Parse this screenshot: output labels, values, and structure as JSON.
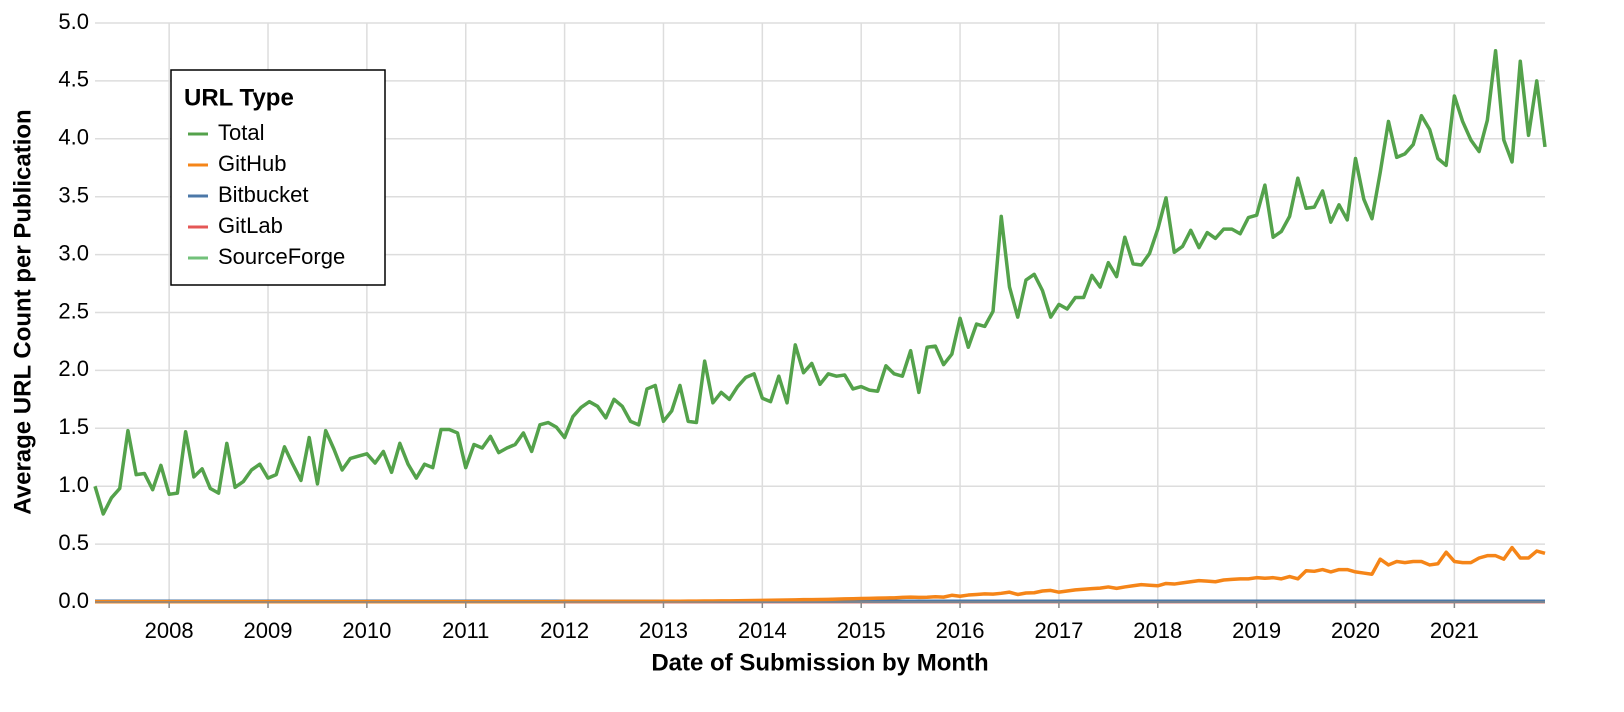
{
  "chart_data": {
    "type": "line",
    "x_label": "Date of Submission by Month",
    "y_label": "Average URL Count per Publication",
    "legend_title": "URL Type",
    "legend_position": "upper-left",
    "grid": true,
    "categories": [
      null,
      null,
      null,
      null,
      null,
      null,
      null,
      null,
      null,
      "2008",
      null,
      null,
      null,
      null,
      null,
      null,
      null,
      null,
      null,
      null,
      null,
      "2009",
      null,
      null,
      null,
      null,
      null,
      null,
      null,
      null,
      null,
      null,
      null,
      "2010",
      null,
      null,
      null,
      null,
      null,
      null,
      null,
      null,
      null,
      null,
      null,
      "2011",
      null,
      null,
      null,
      null,
      null,
      null,
      null,
      null,
      null,
      null,
      null,
      "2012",
      null,
      null,
      null,
      null,
      null,
      null,
      null,
      null,
      null,
      null,
      null,
      "2013",
      null,
      null,
      null,
      null,
      null,
      null,
      null,
      null,
      null,
      null,
      null,
      "2014",
      null,
      null,
      null,
      null,
      null,
      null,
      null,
      null,
      null,
      null,
      null,
      "2015",
      null,
      null,
      null,
      null,
      null,
      null,
      null,
      null,
      null,
      null,
      null,
      "2016",
      null,
      null,
      null,
      null,
      null,
      null,
      null,
      null,
      null,
      null,
      null,
      "2017",
      null,
      null,
      null,
      null,
      null,
      null,
      null,
      null,
      null,
      null,
      null,
      "2018",
      null,
      null,
      null,
      null,
      null,
      null,
      null,
      null,
      null,
      null,
      null,
      "2019",
      null,
      null,
      null,
      null,
      null,
      null,
      null,
      null,
      null,
      null,
      null,
      "2020",
      null,
      null,
      null,
      null,
      null,
      null,
      null,
      null,
      null,
      null,
      null,
      "2021",
      null,
      null,
      null,
      null,
      null,
      null,
      null,
      null,
      null,
      null,
      null
    ],
    "ylim": [
      0,
      5
    ],
    "yticks": [
      {
        "value": 0,
        "label": "0.0"
      },
      0.5,
      {
        "value": 1,
        "label": "1.0"
      },
      1.5,
      {
        "value": 2,
        "label": "2.0"
      },
      2.5,
      {
        "value": 3,
        "label": "3.0"
      },
      3.5,
      {
        "value": 4,
        "label": "4.0"
      },
      4.5,
      {
        "value": 5,
        "label": "5.0"
      }
    ],
    "series": [
      {
        "name": "Total",
        "color": "#54a24b",
        "values": [
          1.0,
          0.76,
          0.9,
          0.98,
          1.48,
          1.1,
          1.11,
          0.97,
          1.18,
          0.93,
          0.94,
          1.47,
          1.08,
          1.15,
          0.98,
          0.94,
          1.37,
          0.99,
          1.04,
          1.14,
          1.19,
          1.07,
          1.1,
          1.34,
          1.19,
          1.05,
          1.42,
          1.02,
          1.48,
          1.32,
          1.14,
          1.24,
          1.26,
          1.28,
          1.2,
          1.3,
          1.12,
          1.37,
          1.19,
          1.07,
          1.19,
          1.16,
          1.49,
          1.49,
          1.46,
          1.16,
          1.36,
          1.33,
          1.43,
          1.29,
          1.33,
          1.36,
          1.46,
          1.3,
          1.53,
          1.55,
          1.51,
          1.42,
          1.6,
          1.68,
          1.73,
          1.69,
          1.59,
          1.75,
          1.69,
          1.56,
          1.53,
          1.84,
          1.87,
          1.56,
          1.65,
          1.87,
          1.56,
          1.55,
          2.08,
          1.72,
          1.81,
          1.75,
          1.86,
          1.94,
          1.97,
          1.76,
          1.73,
          1.95,
          1.72,
          2.22,
          1.98,
          2.06,
          1.88,
          1.97,
          1.95,
          1.96,
          1.84,
          1.86,
          1.83,
          1.82,
          2.04,
          1.97,
          1.95,
          2.17,
          1.81,
          2.2,
          2.21,
          2.05,
          2.14,
          2.45,
          2.2,
          2.4,
          2.38,
          2.51,
          3.33,
          2.72,
          2.46,
          2.78,
          2.83,
          2.69,
          2.46,
          2.57,
          2.53,
          2.63,
          2.63,
          2.82,
          2.72,
          2.93,
          2.81,
          3.15,
          2.92,
          2.91,
          3.01,
          3.22,
          3.49,
          3.02,
          3.07,
          3.21,
          3.06,
          3.19,
          3.14,
          3.22,
          3.22,
          3.18,
          3.32,
          3.34,
          3.6,
          3.15,
          3.2,
          3.33,
          3.66,
          3.4,
          3.41,
          3.55,
          3.28,
          3.43,
          3.3,
          3.83,
          3.48,
          3.31,
          3.71,
          4.15,
          3.84,
          3.87,
          3.95,
          4.2,
          4.08,
          3.83,
          3.77,
          4.37,
          4.15,
          3.99,
          3.89,
          4.16,
          4.76,
          3.99,
          3.8,
          4.67,
          4.03,
          4.5,
          3.93
        ]
      },
      {
        "name": "GitHub",
        "color": "#f58518",
        "values": [
          0.002,
          0.002,
          0.002,
          0.002,
          0.002,
          0.002,
          0.002,
          0.002,
          0.002,
          0.002,
          0.002,
          0.002,
          0.002,
          0.002,
          0.002,
          0.002,
          0.002,
          0.002,
          0.002,
          0.002,
          0.002,
          0.002,
          0.002,
          0.002,
          0.002,
          0.002,
          0.002,
          0.002,
          0.002,
          0.002,
          0.002,
          0.002,
          0.002,
          0.002,
          0.002,
          0.002,
          0.002,
          0.002,
          0.002,
          0.002,
          0.002,
          0.002,
          0.002,
          0.002,
          0.002,
          0.002,
          0.002,
          0.002,
          0.002,
          0.002,
          0.002,
          0.002,
          0.002,
          0.002,
          0.002,
          0.002,
          0.002,
          0.005,
          0.005,
          0.005,
          0.005,
          0.005,
          0.005,
          0.005,
          0.005,
          0.005,
          0.005,
          0.005,
          0.005,
          0.006,
          0.007,
          0.007,
          0.008,
          0.008,
          0.009,
          0.009,
          0.01,
          0.01,
          0.011,
          0.012,
          0.013,
          0.014,
          0.015,
          0.016,
          0.017,
          0.018,
          0.02,
          0.021,
          0.022,
          0.023,
          0.025,
          0.027,
          0.028,
          0.03,
          0.031,
          0.033,
          0.035,
          0.036,
          0.04,
          0.042,
          0.04,
          0.041,
          0.045,
          0.042,
          0.058,
          0.05,
          0.06,
          0.065,
          0.07,
          0.068,
          0.075,
          0.085,
          0.065,
          0.078,
          0.08,
          0.095,
          0.1,
          0.085,
          0.095,
          0.105,
          0.11,
          0.115,
          0.12,
          0.13,
          0.118,
          0.13,
          0.14,
          0.15,
          0.145,
          0.14,
          0.16,
          0.155,
          0.165,
          0.175,
          0.185,
          0.18,
          0.175,
          0.19,
          0.195,
          0.2,
          0.2,
          0.21,
          0.205,
          0.21,
          0.2,
          0.22,
          0.2,
          0.27,
          0.265,
          0.28,
          0.26,
          0.28,
          0.28,
          0.26,
          0.25,
          0.24,
          0.37,
          0.32,
          0.35,
          0.34,
          0.35,
          0.35,
          0.32,
          0.33,
          0.43,
          0.35,
          0.34,
          0.34,
          0.38,
          0.4,
          0.4,
          0.37,
          0.47,
          0.38,
          0.38,
          0.44,
          0.42
        ]
      },
      {
        "name": "Bitbucket",
        "color": "#4c78a8",
        "values": [
          0.006,
          0.006,
          0.006,
          0.006,
          0.006,
          0.006,
          0.006,
          0.006,
          0.006,
          0.006,
          0.006,
          0.006,
          0.006,
          0.006,
          0.006,
          0.006,
          0.006,
          0.006,
          0.006,
          0.006,
          0.006,
          0.006,
          0.006,
          0.006,
          0.006,
          0.006,
          0.006,
          0.006,
          0.006,
          0.006,
          0.006,
          0.006,
          0.006,
          0.006,
          0.006,
          0.006,
          0.006,
          0.006,
          0.006,
          0.006,
          0.006,
          0.006,
          0.006,
          0.006,
          0.006,
          0.006,
          0.006,
          0.006,
          0.006,
          0.006,
          0.006,
          0.006,
          0.006,
          0.006,
          0.006,
          0.006,
          0.006,
          0.006,
          0.006,
          0.006,
          0.006,
          0.006,
          0.006,
          0.006,
          0.006,
          0.006,
          0.006,
          0.006,
          0.006,
          0.006,
          0.006,
          0.006,
          0.006,
          0.006,
          0.006,
          0.006,
          0.006,
          0.006,
          0.006,
          0.006,
          0.006,
          0.006,
          0.006,
          0.006,
          0.006,
          0.006,
          0.006,
          0.006,
          0.006,
          0.006,
          0.006,
          0.006,
          0.006,
          0.006,
          0.006,
          0.006,
          0.006,
          0.006,
          0.006,
          0.006,
          0.006,
          0.006,
          0.006,
          0.006,
          0.006,
          0.006,
          0.006,
          0.006,
          0.006,
          0.006,
          0.006,
          0.006,
          0.006,
          0.006,
          0.006,
          0.006,
          0.006,
          0.006,
          0.006,
          0.006,
          0.006,
          0.006,
          0.006,
          0.006,
          0.006,
          0.006,
          0.006,
          0.006,
          0.006,
          0.006,
          0.006,
          0.006,
          0.006,
          0.006,
          0.006,
          0.006,
          0.006,
          0.006,
          0.006,
          0.006,
          0.006,
          0.006,
          0.006,
          0.006,
          0.006,
          0.006,
          0.006,
          0.006,
          0.006,
          0.006,
          0.006,
          0.006,
          0.006,
          0.006,
          0.006,
          0.006,
          0.006,
          0.006,
          0.006,
          0.006,
          0.006,
          0.006,
          0.006,
          0.006,
          0.006,
          0.006,
          0.006,
          0.006,
          0.006,
          0.006,
          0.006,
          0.006,
          0.006,
          0.006,
          0.006,
          0.006,
          0.006
        ]
      },
      {
        "name": "GitLab",
        "color": "#e45756",
        "values": [
          0.003,
          0.003,
          0.003,
          0.003,
          0.003,
          0.003,
          0.003,
          0.003,
          0.003,
          0.003,
          0.003,
          0.003,
          0.003,
          0.003,
          0.003,
          0.003,
          0.003,
          0.003,
          0.003,
          0.003,
          0.003,
          0.003,
          0.003,
          0.003,
          0.003,
          0.003,
          0.003,
          0.003,
          0.003,
          0.003,
          0.003,
          0.003,
          0.003,
          0.003,
          0.003,
          0.003,
          0.003,
          0.003,
          0.003,
          0.003,
          0.003,
          0.003,
          0.003,
          0.003,
          0.003,
          0.003,
          0.003,
          0.003,
          0.003,
          0.003,
          0.003,
          0.003,
          0.003,
          0.003,
          0.003,
          0.003,
          0.003,
          0.003,
          0.003,
          0.003,
          0.003,
          0.003,
          0.003,
          0.003,
          0.003,
          0.003,
          0.003,
          0.003,
          0.003,
          0.003,
          0.003,
          0.003,
          0.003,
          0.003,
          0.003,
          0.003,
          0.003,
          0.003,
          0.003,
          0.003,
          0.003,
          0.003,
          0.003,
          0.003,
          0.003,
          0.003,
          0.003,
          0.003,
          0.003,
          0.003,
          0.003,
          0.003,
          0.003,
          0.003,
          0.003,
          0.003,
          0.003,
          0.003,
          0.003,
          0.003,
          0.003,
          0.003,
          0.003,
          0.003,
          0.003,
          0.003,
          0.003,
          0.003,
          0.003,
          0.003,
          0.003,
          0.003,
          0.003,
          0.003,
          0.003,
          0.003,
          0.003,
          0.003,
          0.003,
          0.003,
          0.003,
          0.003,
          0.003,
          0.003,
          0.003,
          0.003,
          0.003,
          0.003,
          0.003,
          0.003,
          0.003,
          0.003,
          0.003,
          0.003,
          0.003,
          0.003,
          0.003,
          0.003,
          0.003,
          0.003,
          0.003,
          0.003,
          0.003,
          0.003,
          0.003,
          0.003,
          0.003,
          0.003,
          0.003,
          0.003,
          0.003,
          0.003,
          0.003,
          0.003,
          0.003,
          0.003,
          0.003,
          0.003,
          0.003,
          0.003,
          0.003,
          0.003,
          0.003,
          0.003,
          0.003,
          0.003,
          0.003,
          0.003,
          0.003,
          0.003,
          0.003,
          0.003,
          0.003,
          0.003,
          0.003,
          0.003,
          0.003
        ]
      },
      {
        "name": "SourceForge",
        "color": "#72c17a",
        "values": [
          0.004,
          0.004,
          0.004,
          0.004,
          0.004,
          0.004,
          0.004,
          0.004,
          0.004,
          0.004,
          0.004,
          0.004,
          0.004,
          0.004,
          0.004,
          0.004,
          0.004,
          0.004,
          0.004,
          0.004,
          0.004,
          0.004,
          0.004,
          0.004,
          0.004,
          0.004,
          0.004,
          0.004,
          0.004,
          0.004,
          0.004,
          0.004,
          0.004,
          0.004,
          0.004,
          0.004,
          0.004,
          0.004,
          0.004,
          0.004,
          0.004,
          0.004,
          0.004,
          0.004,
          0.004,
          0.004,
          0.004,
          0.004,
          0.004,
          0.004,
          0.004,
          0.004,
          0.004,
          0.004,
          0.004,
          0.004,
          0.004,
          0.004,
          0.004,
          0.004,
          0.004,
          0.004,
          0.004,
          0.004,
          0.004,
          0.004,
          0.004,
          0.004,
          0.004,
          0.004,
          0.004,
          0.004,
          0.004,
          0.004,
          0.004,
          0.004,
          0.004,
          0.004,
          0.004,
          0.004,
          0.004,
          0.004,
          0.004,
          0.004,
          0.004,
          0.004,
          0.004,
          0.004,
          0.004,
          0.004,
          0.004,
          0.004,
          0.004,
          0.004,
          0.004,
          0.004,
          0.004,
          0.004,
          0.004,
          0.004,
          0.004,
          0.004,
          0.004,
          0.004,
          0.004,
          0.004,
          0.004,
          0.004,
          0.004,
          0.004,
          0.004,
          0.004,
          0.004,
          0.004,
          0.004,
          0.004,
          0.004,
          0.004,
          0.004,
          0.004,
          0.004,
          0.004,
          0.004,
          0.004,
          0.004,
          0.004,
          0.004,
          0.004,
          0.004,
          0.004,
          0.004,
          0.004,
          0.004,
          0.004,
          0.004,
          0.004,
          0.004,
          0.004,
          0.004,
          0.004,
          0.004,
          0.004,
          0.004,
          0.004,
          0.004,
          0.004,
          0.004,
          0.004,
          0.004,
          0.004,
          0.004,
          0.004,
          0.004,
          0.004,
          0.004,
          0.004,
          0.004,
          0.004,
          0.004,
          0.004,
          0.004,
          0.004,
          0.004,
          0.004,
          0.004,
          0.004,
          0.004,
          0.004,
          0.004,
          0.004,
          0.004,
          0.004,
          0.004,
          0.004,
          0.004,
          0.004,
          0.004
        ]
      }
    ]
  }
}
